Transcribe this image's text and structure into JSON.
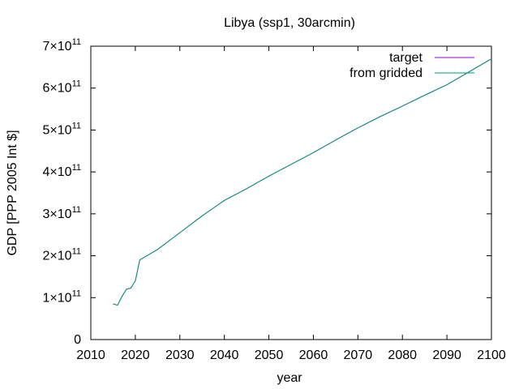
{
  "chart_data": {
    "type": "line",
    "title": "Libya (ssp1, 30arcmin)",
    "xlabel": "year",
    "ylabel": "GDP [PPP 2005 Int $]",
    "xlim": [
      2010,
      2100
    ],
    "ylim": [
      0,
      700000000000
    ],
    "x_ticks": [
      2010,
      2020,
      2030,
      2040,
      2050,
      2060,
      2070,
      2080,
      2090,
      2100
    ],
    "x_tick_labels": [
      "2010",
      "2020",
      "2030",
      "2040",
      "2050",
      "2060",
      "2070",
      "2080",
      "2090",
      "2100"
    ],
    "y_ticks": [
      {
        "value": 0,
        "label": "0",
        "exp": ""
      },
      {
        "value": 100000000000,
        "label": "1×10",
        "exp": "11"
      },
      {
        "value": 200000000000,
        "label": "2×10",
        "exp": "11"
      },
      {
        "value": 300000000000,
        "label": "3×10",
        "exp": "11"
      },
      {
        "value": 400000000000,
        "label": "4×10",
        "exp": "11"
      },
      {
        "value": 500000000000,
        "label": "5×10",
        "exp": "11"
      },
      {
        "value": 600000000000,
        "label": "6×10",
        "exp": "11"
      },
      {
        "value": 700000000000,
        "label": "7×10",
        "exp": "11"
      }
    ],
    "grid": false,
    "legend_position": "top-right",
    "x": [
      2015,
      2016,
      2017,
      2018,
      2019,
      2020,
      2021,
      2025,
      2030,
      2035,
      2040,
      2045,
      2050,
      2055,
      2060,
      2065,
      2070,
      2075,
      2080,
      2085,
      2090,
      2095,
      2100
    ],
    "series": [
      {
        "name": "target",
        "color": "#9400d3",
        "values": [
          85000000000,
          82000000000,
          103000000000,
          120000000000,
          123000000000,
          140000000000,
          190000000000,
          215000000000,
          255000000000,
          295000000000,
          332000000000,
          360000000000,
          390000000000,
          418000000000,
          446000000000,
          476000000000,
          505000000000,
          532000000000,
          557000000000,
          583000000000,
          608000000000,
          639000000000,
          670000000000
        ]
      },
      {
        "name": "from gridded",
        "color": "#009e73",
        "values": [
          85000000000,
          82000000000,
          103000000000,
          120000000000,
          123000000000,
          140000000000,
          190000000000,
          215000000000,
          255000000000,
          295000000000,
          332000000000,
          360000000000,
          390000000000,
          418000000000,
          446000000000,
          476000000000,
          505000000000,
          532000000000,
          557000000000,
          583000000000,
          608000000000,
          639000000000,
          670000000000
        ]
      }
    ]
  }
}
